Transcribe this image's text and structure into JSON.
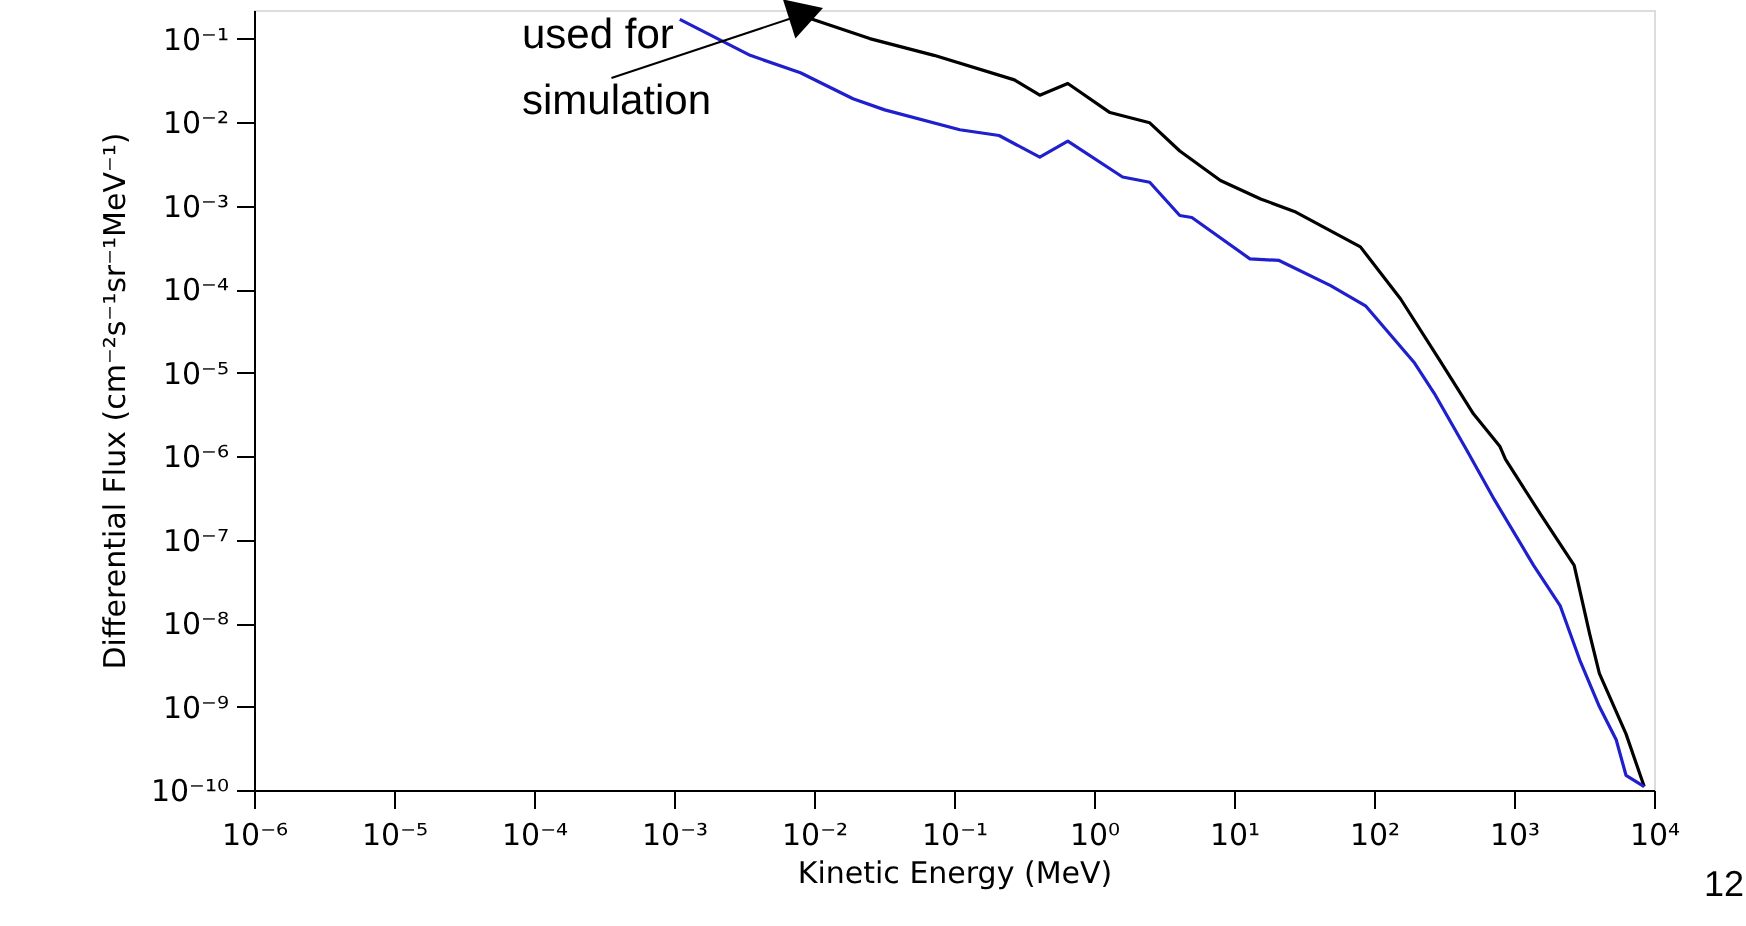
{
  "chart_data": {
    "type": "line",
    "xlabel": "Kinetic Energy (MeV)",
    "ylabel": "Differential Flux (cm⁻²s⁻¹sr⁻¹MeV⁻¹)",
    "log": "xy",
    "grid": false,
    "legend": false,
    "line_style": "solid",
    "marker": "none",
    "xlim": [
      1e-06,
      10000.0
    ],
    "ylim": [
      1e-10,
      0.22
    ],
    "xticks": [
      {
        "value": 1e-06,
        "label": "10⁻⁶"
      },
      {
        "value": 1e-05,
        "label": "10⁻⁵"
      },
      {
        "value": 0.0001,
        "label": "10⁻⁴"
      },
      {
        "value": 0.001,
        "label": "10⁻³"
      },
      {
        "value": 0.01,
        "label": "10⁻²"
      },
      {
        "value": 0.1,
        "label": "10⁻¹"
      },
      {
        "value": 1,
        "label": "10⁰"
      },
      {
        "value": 10,
        "label": "10¹"
      },
      {
        "value": 100,
        "label": "10²"
      },
      {
        "value": 1000,
        "label": "10³"
      },
      {
        "value": 10000,
        "label": "10⁴"
      }
    ],
    "yticks": [
      {
        "value": 1e-10,
        "label": "10⁻¹⁰"
      },
      {
        "value": 1e-09,
        "label": "10⁻⁹"
      },
      {
        "value": 1e-08,
        "label": "10⁻⁸"
      },
      {
        "value": 1e-07,
        "label": "10⁻⁷"
      },
      {
        "value": 1e-06,
        "label": "10⁻⁶"
      },
      {
        "value": 1e-05,
        "label": "10⁻⁵"
      },
      {
        "value": 0.0001,
        "label": "10⁻⁴"
      },
      {
        "value": 0.001,
        "label": "10⁻³"
      },
      {
        "value": 0.01,
        "label": "10⁻²"
      },
      {
        "value": 0.1,
        "label": "10⁻¹"
      }
    ],
    "series": [
      {
        "color": "#000000",
        "x": [
          0.008,
          0.025,
          0.072,
          0.27,
          0.41,
          0.65,
          1.3,
          2.5,
          4.1,
          8,
          15.5,
          27,
          80,
          155,
          295,
          513,
          794,
          870,
          1550,
          2690,
          3470,
          4070,
          6310,
          8510
        ],
        "values": [
          0.19,
          0.1,
          0.063,
          0.032,
          0.021,
          0.029,
          0.013,
          0.0098,
          0.0045,
          0.002,
          0.0012,
          0.00085,
          0.00032,
          7.6e-05,
          1.4e-05,
          3.2e-06,
          1.3e-06,
          9.1e-07,
          2e-07,
          4.9e-08,
          7.4e-09,
          2.5e-09,
          4.7e-10,
          1.1e-10
        ]
      },
      {
        "color": "#1f1fcc",
        "x": [
          0.0011,
          0.0035,
          0.008,
          0.019,
          0.032,
          0.11,
          0.21,
          0.41,
          0.65,
          1.6,
          2.5,
          4.1,
          5,
          13,
          21,
          49,
          87,
          195,
          270,
          457,
          724,
          1380,
          2140,
          2950,
          4070,
          5370,
          6310,
          8510
        ],
        "values": [
          0.17,
          0.063,
          0.039,
          0.019,
          0.014,
          0.0081,
          0.0069,
          0.0038,
          0.0059,
          0.0022,
          0.0019,
          0.00076,
          0.00072,
          0.00023,
          0.00022,
          0.00011,
          6.3e-05,
          1.3e-05,
          5.6e-06,
          1.2e-06,
          3e-07,
          4.9e-08,
          1.6e-08,
          3.6e-09,
          1e-09,
          4e-10,
          1.5e-10,
          1.1e-10
        ]
      }
    ],
    "annotations": [
      {
        "text": "used for\nsimulation",
        "x": 0.008,
        "y": 0.19
      },
      "12"
    ]
  }
}
